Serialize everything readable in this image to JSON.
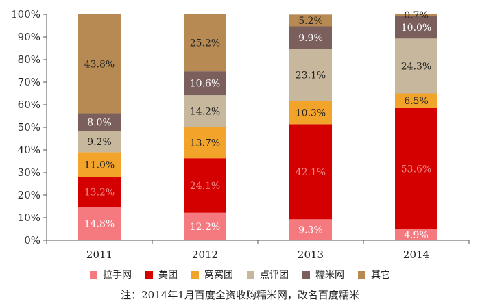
{
  "chart_data": {
    "type": "bar",
    "stacked": true,
    "categories": [
      "2011",
      "2012",
      "2013",
      "2014"
    ],
    "ylim": [
      0,
      100
    ],
    "yticks": [
      "0%",
      "10%",
      "20%",
      "30%",
      "40%",
      "50%",
      "60%",
      "70%",
      "80%",
      "90%",
      "100%"
    ],
    "series": [
      {
        "name": "拉手网",
        "color": "#f47a80",
        "values": [
          14.8,
          12.2,
          9.3,
          4.9
        ],
        "labels": [
          "14.8%",
          "12.2%",
          "9.3%",
          "4.9%"
        ],
        "label_color": "#ffffff"
      },
      {
        "name": "美团",
        "color": "#d40000",
        "values": [
          13.2,
          24.1,
          42.1,
          53.6
        ],
        "labels": [
          "13.2%",
          "24.1%",
          "42.1%",
          "53.6%"
        ],
        "label_color": "#f08a8a"
      },
      {
        "name": "窝窝团",
        "color": "#f2a32a",
        "values": [
          11.0,
          13.7,
          10.3,
          6.5
        ],
        "labels": [
          "11.0%",
          "13.7%",
          "10.3%",
          "6.5%"
        ],
        "label_color": "#222222"
      },
      {
        "name": "点评团",
        "color": "#c7b89d",
        "values": [
          9.2,
          14.2,
          23.1,
          24.3
        ],
        "labels": [
          "9.2%",
          "14.2%",
          "23.1%",
          "24.3%"
        ],
        "label_color": "#222222"
      },
      {
        "name": "糯米网",
        "color": "#7a5f5c",
        "values": [
          8.0,
          10.6,
          9.9,
          10.0
        ],
        "labels": [
          "8.0%",
          "10.6%",
          "9.9%",
          "10.0%"
        ],
        "label_color": "#ffffff"
      },
      {
        "name": "其它",
        "color": "#b68a52",
        "values": [
          43.8,
          25.2,
          5.2,
          0.7
        ],
        "labels": [
          "43.8%",
          "25.2%",
          "5.2%",
          "0.7%"
        ],
        "label_color": "#222222"
      }
    ]
  },
  "note": "注：2014年1月百度全资收购糯米网，改名百度糯米"
}
